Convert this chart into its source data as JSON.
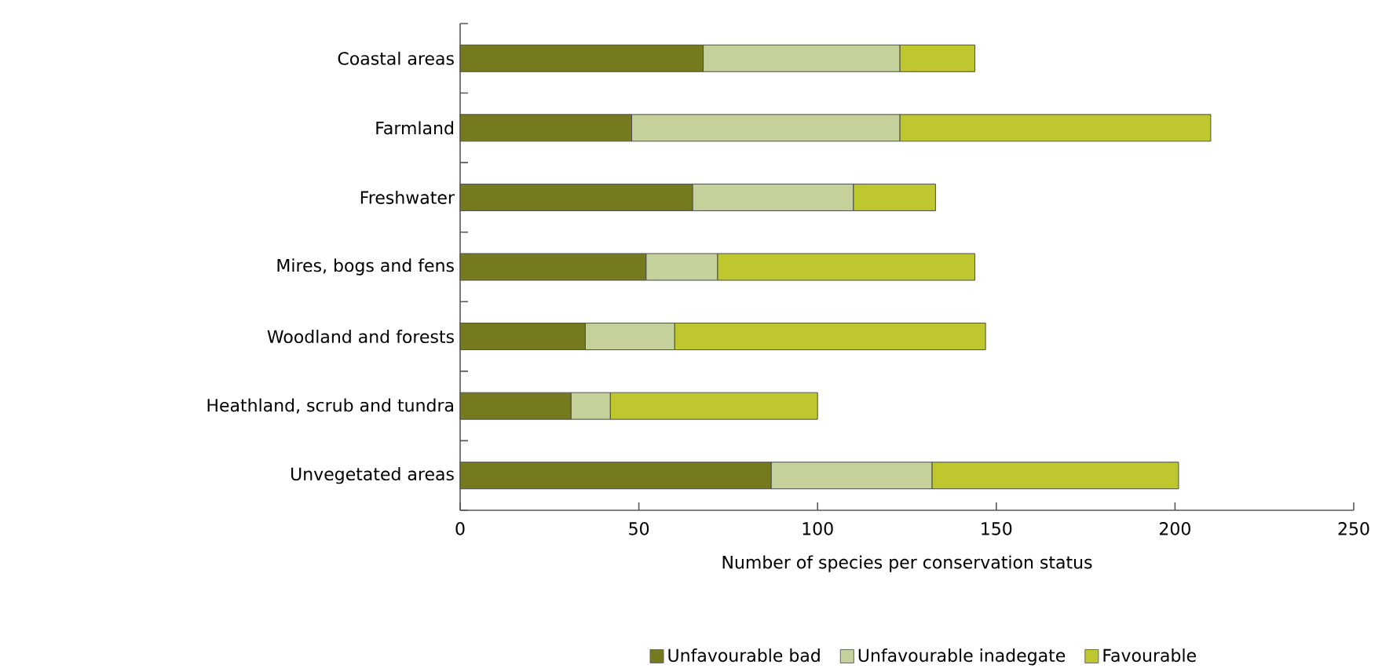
{
  "chart_data": {
    "type": "bar",
    "orientation": "horizontal",
    "stacked": true,
    "categories": [
      "Coastal areas",
      "Farmland",
      "Freshwater",
      "Mires, bogs and fens",
      "Woodland and forests",
      "Heathland, scrub and tundra",
      "Unvegetated areas"
    ],
    "series": [
      {
        "name": "Unfavourable bad",
        "color": "#767a1e",
        "values": [
          68,
          48,
          65,
          52,
          35,
          31,
          87
        ]
      },
      {
        "name": "Unfavourable inadegate",
        "color": "#c4d19a",
        "values": [
          55,
          75,
          45,
          20,
          25,
          11,
          45
        ]
      },
      {
        "name": "Favourable",
        "color": "#bec72e",
        "values": [
          21,
          87,
          23,
          72,
          87,
          58,
          69
        ]
      }
    ],
    "xlabel": "Number of species per conservation status",
    "xlim": [
      0,
      250
    ],
    "xticks": [
      0,
      50,
      100,
      150,
      200,
      250
    ],
    "legend": "bottom"
  }
}
